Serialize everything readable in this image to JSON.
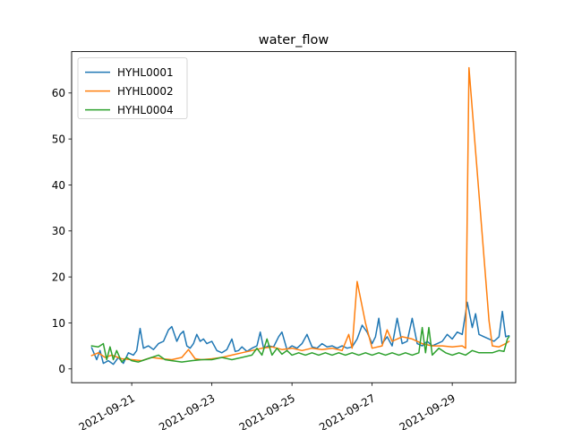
{
  "chart_data": {
    "type": "line",
    "title": "water_flow",
    "xlabel": "",
    "ylabel": "",
    "x_axis": "dates",
    "xlim": [
      "2021-09-19T12:00",
      "2021-09-30T14:00"
    ],
    "ylim": [
      -3,
      69
    ],
    "x_ticks": [
      "2021-09-21",
      "2021-09-23",
      "2021-09-25",
      "2021-09-27",
      "2021-09-29"
    ],
    "y_ticks": [
      0,
      10,
      20,
      30,
      40,
      50,
      60
    ],
    "grid": false,
    "legend_position": "top-left",
    "series": [
      {
        "name": "HYHL0001",
        "color": "#1f77b4",
        "points": [
          [
            "2021-09-20T00:00",
            4.6
          ],
          [
            "2021-09-20T03:00",
            2.0
          ],
          [
            "2021-09-20T05:00",
            4.0
          ],
          [
            "2021-09-20T07:00",
            1.2
          ],
          [
            "2021-09-20T10:00",
            1.8
          ],
          [
            "2021-09-20T13:00",
            1.0
          ],
          [
            "2021-09-20T16:00",
            2.5
          ],
          [
            "2021-09-20T19:00",
            1.2
          ],
          [
            "2021-09-20T22:00",
            3.5
          ],
          [
            "2021-09-21T01:00",
            3.0
          ],
          [
            "2021-09-21T03:00",
            4.0
          ],
          [
            "2021-09-21T05:00",
            8.8
          ],
          [
            "2021-09-21T07:00",
            4.5
          ],
          [
            "2021-09-21T10:00",
            5.0
          ],
          [
            "2021-09-21T13:00",
            4.2
          ],
          [
            "2021-09-21T16:00",
            5.5
          ],
          [
            "2021-09-21T19:00",
            6.0
          ],
          [
            "2021-09-21T22:00",
            8.5
          ],
          [
            "2021-09-22T00:00",
            9.2
          ],
          [
            "2021-09-22T03:00",
            6.0
          ],
          [
            "2021-09-22T05:00",
            7.5
          ],
          [
            "2021-09-22T07:00",
            8.2
          ],
          [
            "2021-09-22T09:00",
            5.0
          ],
          [
            "2021-09-22T11:00",
            4.5
          ],
          [
            "2021-09-22T13:00",
            5.5
          ],
          [
            "2021-09-22T15:00",
            7.5
          ],
          [
            "2021-09-22T17:00",
            6.0
          ],
          [
            "2021-09-22T19:00",
            6.5
          ],
          [
            "2021-09-22T21:00",
            5.5
          ],
          [
            "2021-09-23T00:00",
            6.0
          ],
          [
            "2021-09-23T03:00",
            4.0
          ],
          [
            "2021-09-23T06:00",
            3.5
          ],
          [
            "2021-09-23T09:00",
            4.2
          ],
          [
            "2021-09-23T12:00",
            6.5
          ],
          [
            "2021-09-23T14:00",
            3.8
          ],
          [
            "2021-09-23T16:00",
            4.0
          ],
          [
            "2021-09-23T18:00",
            4.8
          ],
          [
            "2021-09-23T21:00",
            3.8
          ],
          [
            "2021-09-24T00:00",
            4.5
          ],
          [
            "2021-09-24T03:00",
            5.0
          ],
          [
            "2021-09-24T05:00",
            8.0
          ],
          [
            "2021-09-24T07:00",
            4.5
          ],
          [
            "2021-09-24T10:00",
            5.0
          ],
          [
            "2021-09-24T13:00",
            4.8
          ],
          [
            "2021-09-24T16:00",
            7.0
          ],
          [
            "2021-09-24T18:00",
            8.0
          ],
          [
            "2021-09-24T21:00",
            4.2
          ],
          [
            "2021-09-25T00:00",
            5.0
          ],
          [
            "2021-09-25T03:00",
            4.5
          ],
          [
            "2021-09-25T06:00",
            5.5
          ],
          [
            "2021-09-25T09:00",
            7.5
          ],
          [
            "2021-09-25T12:00",
            4.8
          ],
          [
            "2021-09-25T15:00",
            4.5
          ],
          [
            "2021-09-25T18:00",
            5.5
          ],
          [
            "2021-09-25T21:00",
            4.8
          ],
          [
            "2021-09-26T00:00",
            5.0
          ],
          [
            "2021-09-26T03:00",
            4.5
          ],
          [
            "2021-09-26T06:00",
            5.0
          ],
          [
            "2021-09-26T09:00",
            4.5
          ],
          [
            "2021-09-26T12:00",
            4.8
          ],
          [
            "2021-09-26T15:00",
            6.5
          ],
          [
            "2021-09-26T18:00",
            9.5
          ],
          [
            "2021-09-26T21:00",
            8.0
          ],
          [
            "2021-09-27T00:00",
            5.5
          ],
          [
            "2021-09-27T02:00",
            7.0
          ],
          [
            "2021-09-27T04:00",
            11.0
          ],
          [
            "2021-09-27T06:00",
            5.5
          ],
          [
            "2021-09-27T09:00",
            7.0
          ],
          [
            "2021-09-27T12:00",
            5.0
          ],
          [
            "2021-09-27T15:00",
            11.0
          ],
          [
            "2021-09-27T18:00",
            5.5
          ],
          [
            "2021-09-27T21:00",
            6.0
          ],
          [
            "2021-09-28T00:00",
            11.0
          ],
          [
            "2021-09-28T03:00",
            5.5
          ],
          [
            "2021-09-28T06:00",
            5.0
          ],
          [
            "2021-09-28T09:00",
            6.0
          ],
          [
            "2021-09-28T12:00",
            5.0
          ],
          [
            "2021-09-28T15:00",
            5.5
          ],
          [
            "2021-09-28T18:00",
            6.0
          ],
          [
            "2021-09-28T21:00",
            7.5
          ],
          [
            "2021-09-29T00:00",
            6.5
          ],
          [
            "2021-09-29T03:00",
            8.0
          ],
          [
            "2021-09-29T06:00",
            7.5
          ],
          [
            "2021-09-29T09:00",
            14.5
          ],
          [
            "2021-09-29T12:00",
            9.0
          ],
          [
            "2021-09-29T14:00",
            12.0
          ],
          [
            "2021-09-29T16:00",
            7.5
          ],
          [
            "2021-09-29T19:00",
            7.0
          ],
          [
            "2021-09-29T22:00",
            6.5
          ],
          [
            "2021-09-30T01:00",
            6.0
          ],
          [
            "2021-09-30T04:00",
            7.0
          ],
          [
            "2021-09-30T06:00",
            12.5
          ],
          [
            "2021-09-30T08:00",
            7.0
          ],
          [
            "2021-09-30T10:00",
            7.2
          ]
        ]
      },
      {
        "name": "HYHL0002",
        "color": "#ff7f0e",
        "points": [
          [
            "2021-09-20T00:00",
            2.9
          ],
          [
            "2021-09-20T04:00",
            3.5
          ],
          [
            "2021-09-20T08:00",
            2.5
          ],
          [
            "2021-09-20T12:00",
            3.0
          ],
          [
            "2021-09-20T18:00",
            2.2
          ],
          [
            "2021-09-21T00:00",
            2.0
          ],
          [
            "2021-09-21T06:00",
            1.8
          ],
          [
            "2021-09-21T12:00",
            2.5
          ],
          [
            "2021-09-21T18:00",
            2.2
          ],
          [
            "2021-09-22T00:00",
            2.0
          ],
          [
            "2021-09-22T06:00",
            2.5
          ],
          [
            "2021-09-22T10:00",
            4.2
          ],
          [
            "2021-09-22T14:00",
            2.2
          ],
          [
            "2021-09-22T18:00",
            2.0
          ],
          [
            "2021-09-23T00:00",
            2.2
          ],
          [
            "2021-09-23T06:00",
            2.5
          ],
          [
            "2021-09-23T12:00",
            3.0
          ],
          [
            "2021-09-23T18:00",
            3.5
          ],
          [
            "2021-09-24T00:00",
            4.0
          ],
          [
            "2021-09-24T06:00",
            4.5
          ],
          [
            "2021-09-24T12:00",
            4.8
          ],
          [
            "2021-09-24T18:00",
            4.2
          ],
          [
            "2021-09-25T00:00",
            4.5
          ],
          [
            "2021-09-25T06:00",
            4.0
          ],
          [
            "2021-09-25T12:00",
            4.5
          ],
          [
            "2021-09-25T18:00",
            4.2
          ],
          [
            "2021-09-26T00:00",
            4.5
          ],
          [
            "2021-09-26T06:00",
            4.0
          ],
          [
            "2021-09-26T10:00",
            7.5
          ],
          [
            "2021-09-26T12:00",
            4.5
          ],
          [
            "2021-09-26T15:00",
            19.0
          ],
          [
            "2021-09-26T20:00",
            10.0
          ],
          [
            "2021-09-27T00:00",
            4.5
          ],
          [
            "2021-09-27T06:00",
            5.0
          ],
          [
            "2021-09-27T09:00",
            8.5
          ],
          [
            "2021-09-27T12:00",
            6.0
          ],
          [
            "2021-09-27T18:00",
            7.0
          ],
          [
            "2021-09-28T00:00",
            6.5
          ],
          [
            "2021-09-28T06:00",
            5.5
          ],
          [
            "2021-09-28T12:00",
            5.0
          ],
          [
            "2021-09-28T18:00",
            5.0
          ],
          [
            "2021-09-29T00:00",
            4.8
          ],
          [
            "2021-09-29T06:00",
            5.0
          ],
          [
            "2021-09-29T08:00",
            4.5
          ],
          [
            "2021-09-29T10:00",
            65.5
          ],
          [
            "2021-09-29T22:00",
            10.5
          ],
          [
            "2021-09-30T00:00",
            5.0
          ],
          [
            "2021-09-30T04:00",
            4.8
          ],
          [
            "2021-09-30T08:00",
            5.5
          ],
          [
            "2021-09-30T10:00",
            6.0
          ]
        ]
      },
      {
        "name": "HYHL0004",
        "color": "#2ca02c",
        "points": [
          [
            "2021-09-20T00:00",
            5.0
          ],
          [
            "2021-09-20T04:00",
            4.8
          ],
          [
            "2021-09-20T07:00",
            5.5
          ],
          [
            "2021-09-20T09:00",
            2.0
          ],
          [
            "2021-09-20T11:00",
            4.8
          ],
          [
            "2021-09-20T13:00",
            2.0
          ],
          [
            "2021-09-20T15:00",
            4.0
          ],
          [
            "2021-09-20T18:00",
            1.5
          ],
          [
            "2021-09-20T21:00",
            2.5
          ],
          [
            "2021-09-21T00:00",
            1.8
          ],
          [
            "2021-09-21T04:00",
            1.5
          ],
          [
            "2021-09-21T08:00",
            2.0
          ],
          [
            "2021-09-21T12:00",
            2.5
          ],
          [
            "2021-09-21T16:00",
            3.0
          ],
          [
            "2021-09-21T20:00",
            2.0
          ],
          [
            "2021-09-22T00:00",
            1.8
          ],
          [
            "2021-09-22T06:00",
            1.5
          ],
          [
            "2021-09-22T12:00",
            1.8
          ],
          [
            "2021-09-22T18:00",
            2.0
          ],
          [
            "2021-09-23T00:00",
            2.0
          ],
          [
            "2021-09-23T06:00",
            2.5
          ],
          [
            "2021-09-23T12:00",
            2.0
          ],
          [
            "2021-09-23T18:00",
            2.5
          ],
          [
            "2021-09-24T00:00",
            3.0
          ],
          [
            "2021-09-24T03:00",
            4.5
          ],
          [
            "2021-09-24T06:00",
            3.0
          ],
          [
            "2021-09-24T09:00",
            6.5
          ],
          [
            "2021-09-24T12:00",
            3.0
          ],
          [
            "2021-09-24T15:00",
            4.5
          ],
          [
            "2021-09-24T18:00",
            3.2
          ],
          [
            "2021-09-24T21:00",
            4.0
          ],
          [
            "2021-09-25T00:00",
            3.0
          ],
          [
            "2021-09-25T04:00",
            3.5
          ],
          [
            "2021-09-25T08:00",
            3.0
          ],
          [
            "2021-09-25T12:00",
            3.5
          ],
          [
            "2021-09-25T16:00",
            3.0
          ],
          [
            "2021-09-25T20:00",
            3.5
          ],
          [
            "2021-09-26T00:00",
            3.0
          ],
          [
            "2021-09-26T04:00",
            3.5
          ],
          [
            "2021-09-26T08:00",
            3.0
          ],
          [
            "2021-09-26T12:00",
            3.5
          ],
          [
            "2021-09-26T16:00",
            3.0
          ],
          [
            "2021-09-26T20:00",
            3.5
          ],
          [
            "2021-09-27T00:00",
            3.0
          ],
          [
            "2021-09-27T04:00",
            3.5
          ],
          [
            "2021-09-27T08:00",
            3.0
          ],
          [
            "2021-09-27T12:00",
            3.5
          ],
          [
            "2021-09-27T16:00",
            3.0
          ],
          [
            "2021-09-27T20:00",
            3.5
          ],
          [
            "2021-09-28T00:00",
            3.0
          ],
          [
            "2021-09-28T04:00",
            3.5
          ],
          [
            "2021-09-28T06:00",
            9.0
          ],
          [
            "2021-09-28T08:00",
            3.5
          ],
          [
            "2021-09-28T10:00",
            9.0
          ],
          [
            "2021-09-28T12:00",
            3.0
          ],
          [
            "2021-09-28T16:00",
            4.5
          ],
          [
            "2021-09-28T20:00",
            3.5
          ],
          [
            "2021-09-29T00:00",
            3.0
          ],
          [
            "2021-09-29T04:00",
            3.5
          ],
          [
            "2021-09-29T08:00",
            3.0
          ],
          [
            "2021-09-29T12:00",
            4.0
          ],
          [
            "2021-09-29T16:00",
            3.5
          ],
          [
            "2021-09-29T20:00",
            3.5
          ],
          [
            "2021-09-30T00:00",
            3.5
          ],
          [
            "2021-09-30T04:00",
            4.0
          ],
          [
            "2021-09-30T07:00",
            3.8
          ],
          [
            "2021-09-30T09:00",
            6.5
          ],
          [
            "2021-09-30T10:00",
            7.0
          ]
        ]
      }
    ]
  }
}
